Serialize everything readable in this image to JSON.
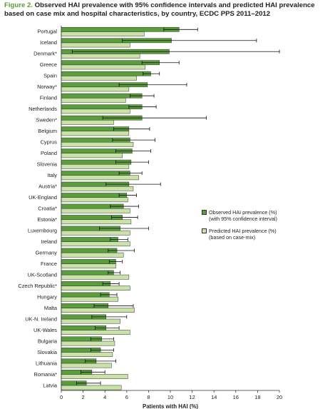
{
  "title": {
    "figure_label": "Figure 2.",
    "text": "Observed HAI prevalence with 95% confidence intervals and predicted HAI prevalence based on case mix and hospital characteristics, by country, ECDC PPS 2011–2012"
  },
  "colors": {
    "observed": "#5a9e3c",
    "predicted": "#c9e2a8",
    "text": "#222222"
  },
  "legend": {
    "observed_line1": "Observed HAI prevalence (%)",
    "observed_line2": "(with 95% confidence interval)",
    "predicted_line1": "Predicted HAI prevalence (%)",
    "predicted_line2": "(based on case-mix)"
  },
  "chart_data": {
    "type": "bar",
    "orientation": "horizontal",
    "xlabel": "Patients with HAI (%)",
    "ylabel": "",
    "xlim": [
      0,
      20
    ],
    "xticks": [
      0,
      2,
      4,
      6,
      8,
      10,
      12,
      14,
      16,
      18,
      20
    ],
    "categories": [
      "Portugal",
      "Iceland",
      "Denmark*",
      "Greece",
      "Spain",
      "Norway*",
      "Finland",
      "Netherlands",
      "Sweden*",
      "Belgium",
      "Cyprus",
      "Poland",
      "Slovenia",
      "Italy",
      "Austria*",
      "UK-England",
      "Croatia*",
      "Estonia*",
      "Luxembourg",
      "Ireland",
      "Germany",
      "France",
      "UK-Scotland",
      "Czech Republic*",
      "Hungary",
      "Malta",
      "UK-N. Ireland",
      "UK-Wales",
      "Bulgaria",
      "Slovakia",
      "Lithuania",
      "Romania*",
      "Latvia"
    ],
    "series": [
      {
        "name": "Observed HAI prevalence (%)",
        "values": [
          10.8,
          10.1,
          9.9,
          9.0,
          8.2,
          7.9,
          7.4,
          7.4,
          7.4,
          6.2,
          6.3,
          6.5,
          6.4,
          6.3,
          6.2,
          6.0,
          5.7,
          5.6,
          5.4,
          5.2,
          5.1,
          5.0,
          4.8,
          4.5,
          4.4,
          4.3,
          4.1,
          4.1,
          3.7,
          3.6,
          3.2,
          2.8,
          2.3
        ],
        "ci_low": [
          9.4,
          5.6,
          1.0,
          7.4,
          7.5,
          5.3,
          6.3,
          6.2,
          3.8,
          4.8,
          4.7,
          5.0,
          5.0,
          5.3,
          4.1,
          5.3,
          4.5,
          4.6,
          3.5,
          4.5,
          4.3,
          4.4,
          4.3,
          3.8,
          3.6,
          3.0,
          2.8,
          3.1,
          2.7,
          2.7,
          2.2,
          1.8,
          1.4
        ],
        "ci_high": [
          12.5,
          17.9,
          20.0,
          10.8,
          9.0,
          11.5,
          8.5,
          8.7,
          13.3,
          8.1,
          8.6,
          8.2,
          8.0,
          7.4,
          9.1,
          6.9,
          7.1,
          7.0,
          8.0,
          6.1,
          6.7,
          5.6,
          5.4,
          5.3,
          5.1,
          6.6,
          6.0,
          5.3,
          4.8,
          4.8,
          5.0,
          4.0,
          3.6
        ]
      },
      {
        "name": "Predicted HAI prevalence (%)",
        "values": [
          7.6,
          6.3,
          7.2,
          7.7,
          6.9,
          6.2,
          5.9,
          6.3,
          4.8,
          6.2,
          6.6,
          5.6,
          6.2,
          7.1,
          6.6,
          6.1,
          6.3,
          6.4,
          6.3,
          6.3,
          5.7,
          5.0,
          6.2,
          6.3,
          5.2,
          6.7,
          5.4,
          6.3,
          4.9,
          4.7,
          4.6,
          6.1,
          5.5
        ]
      }
    ]
  }
}
